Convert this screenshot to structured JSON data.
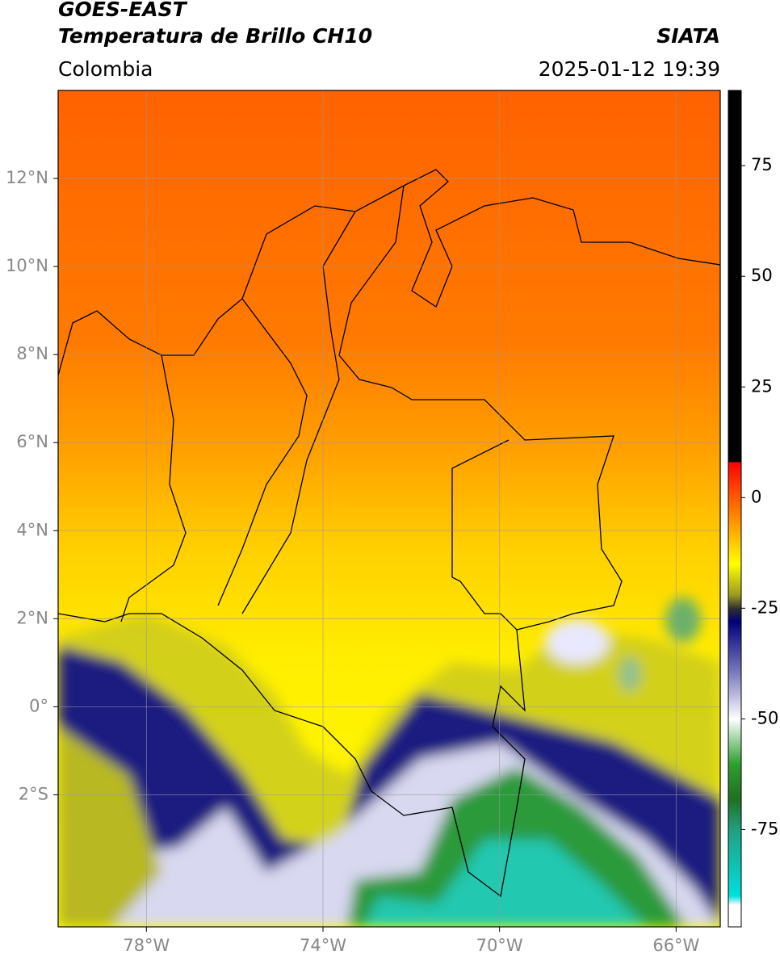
{
  "header": {
    "title": "GOES-EAST",
    "subtitle": "Temperatura de Brillo CH10",
    "region": "Colombia",
    "source": "SIATA",
    "datetime": "2025-01-12 19:39"
  },
  "map": {
    "xlim": [
      -80,
      -65
    ],
    "ylim": [
      -5,
      14
    ],
    "grid": true,
    "xticks": [
      {
        "value": -78,
        "label": "78°W"
      },
      {
        "value": -74,
        "label": "74°W"
      },
      {
        "value": -70,
        "label": "70°W"
      },
      {
        "value": -66,
        "label": "66°W"
      }
    ],
    "yticks": [
      {
        "value": 12,
        "label": "12°N"
      },
      {
        "value": 10,
        "label": "10°N"
      },
      {
        "value": 8,
        "label": "8°N"
      },
      {
        "value": 6,
        "label": "6°N"
      },
      {
        "value": 4,
        "label": "4°N"
      },
      {
        "value": 2,
        "label": "2°N"
      },
      {
        "value": 0,
        "label": "0°"
      },
      {
        "value": -2,
        "label": "2°S"
      }
    ]
  },
  "colorbar": {
    "lim": [
      -97,
      92
    ],
    "ticks": [
      75,
      50,
      25,
      0,
      -25,
      -50,
      -75
    ],
    "stops": [
      {
        "value": 92,
        "color": "#000000"
      },
      {
        "value": 8,
        "color": "#000000"
      },
      {
        "value": 8,
        "color": "#ff0000"
      },
      {
        "value": 0,
        "color": "#ff5a00"
      },
      {
        "value": -8,
        "color": "#ffb000"
      },
      {
        "value": -15,
        "color": "#ffff00"
      },
      {
        "value": -22,
        "color": "#9a9a20"
      },
      {
        "value": -25,
        "color": "#303030"
      },
      {
        "value": -28,
        "color": "#00007a"
      },
      {
        "value": -40,
        "color": "#8080c0"
      },
      {
        "value": -50,
        "color": "#ffffff"
      },
      {
        "value": -60,
        "color": "#30a030"
      },
      {
        "value": -68,
        "color": "#207020"
      },
      {
        "value": -75,
        "color": "#20a080"
      },
      {
        "value": -90,
        "color": "#00e0e0"
      },
      {
        "value": -92,
        "color": "#ffffff"
      },
      {
        "value": -97,
        "color": "#ffffff"
      }
    ]
  }
}
